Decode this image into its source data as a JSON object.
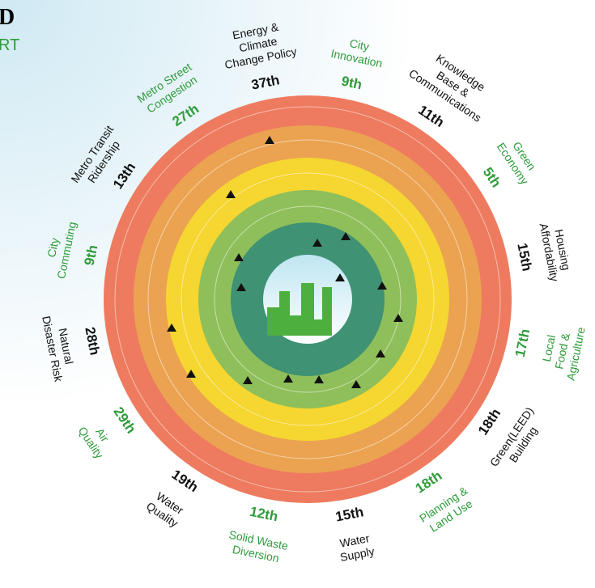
{
  "header": {
    "title": "D",
    "subtitle": "RT"
  },
  "items": [
    {
      "label": [
        "Energy &",
        "Climate",
        "Change Policy"
      ],
      "rank": "37th",
      "color": "#111"
    },
    {
      "label": [
        "City",
        "Innovation"
      ],
      "rank": "9th",
      "color": "#2e9b3a"
    },
    {
      "label": [
        "Knowledge",
        "Base &",
        "Communications"
      ],
      "rank": "11th",
      "color": "#111"
    },
    {
      "label": [
        "Green",
        "Economy"
      ],
      "rank": "5th",
      "color": "#2e9b3a"
    },
    {
      "label": [
        "Housing",
        "Affordability"
      ],
      "rank": "15th",
      "color": "#111"
    },
    {
      "label": [
        "Local",
        "Food &",
        "Agriculture"
      ],
      "rank": "17th",
      "color": "#2e9b3a"
    },
    {
      "label": [
        "Green(LEED)",
        "Building"
      ],
      "rank": "18th",
      "color": "#111"
    },
    {
      "label": [
        "Planning &",
        "Land Use"
      ],
      "rank": "18th",
      "color": "#2e9b3a"
    },
    {
      "label": [
        "Water",
        "Supply"
      ],
      "rank": "15th",
      "color": "#111"
    },
    {
      "label": [
        "Solid Waste",
        "Diversion"
      ],
      "rank": "12th",
      "color": "#2e9b3a"
    },
    {
      "label": [
        "Water",
        "Quality"
      ],
      "rank": "19th",
      "color": "#111"
    },
    {
      "label": [
        "Air",
        "Quality"
      ],
      "rank": "29th",
      "color": "#2e9b3a"
    },
    {
      "label": [
        "Natural",
        "Disaster Risk"
      ],
      "rank": "28th",
      "color": "#111"
    },
    {
      "label": [
        "City",
        "Commuting"
      ],
      "rank": "9th",
      "color": "#2e9b3a"
    },
    {
      "label": [
        "Metro Transit",
        "Ridership"
      ],
      "rank": "13th",
      "color": "#111"
    },
    {
      "label": [
        "Metro Street",
        "Congestion"
      ],
      "rank": "27th",
      "color": "#2e9b3a"
    }
  ]
}
